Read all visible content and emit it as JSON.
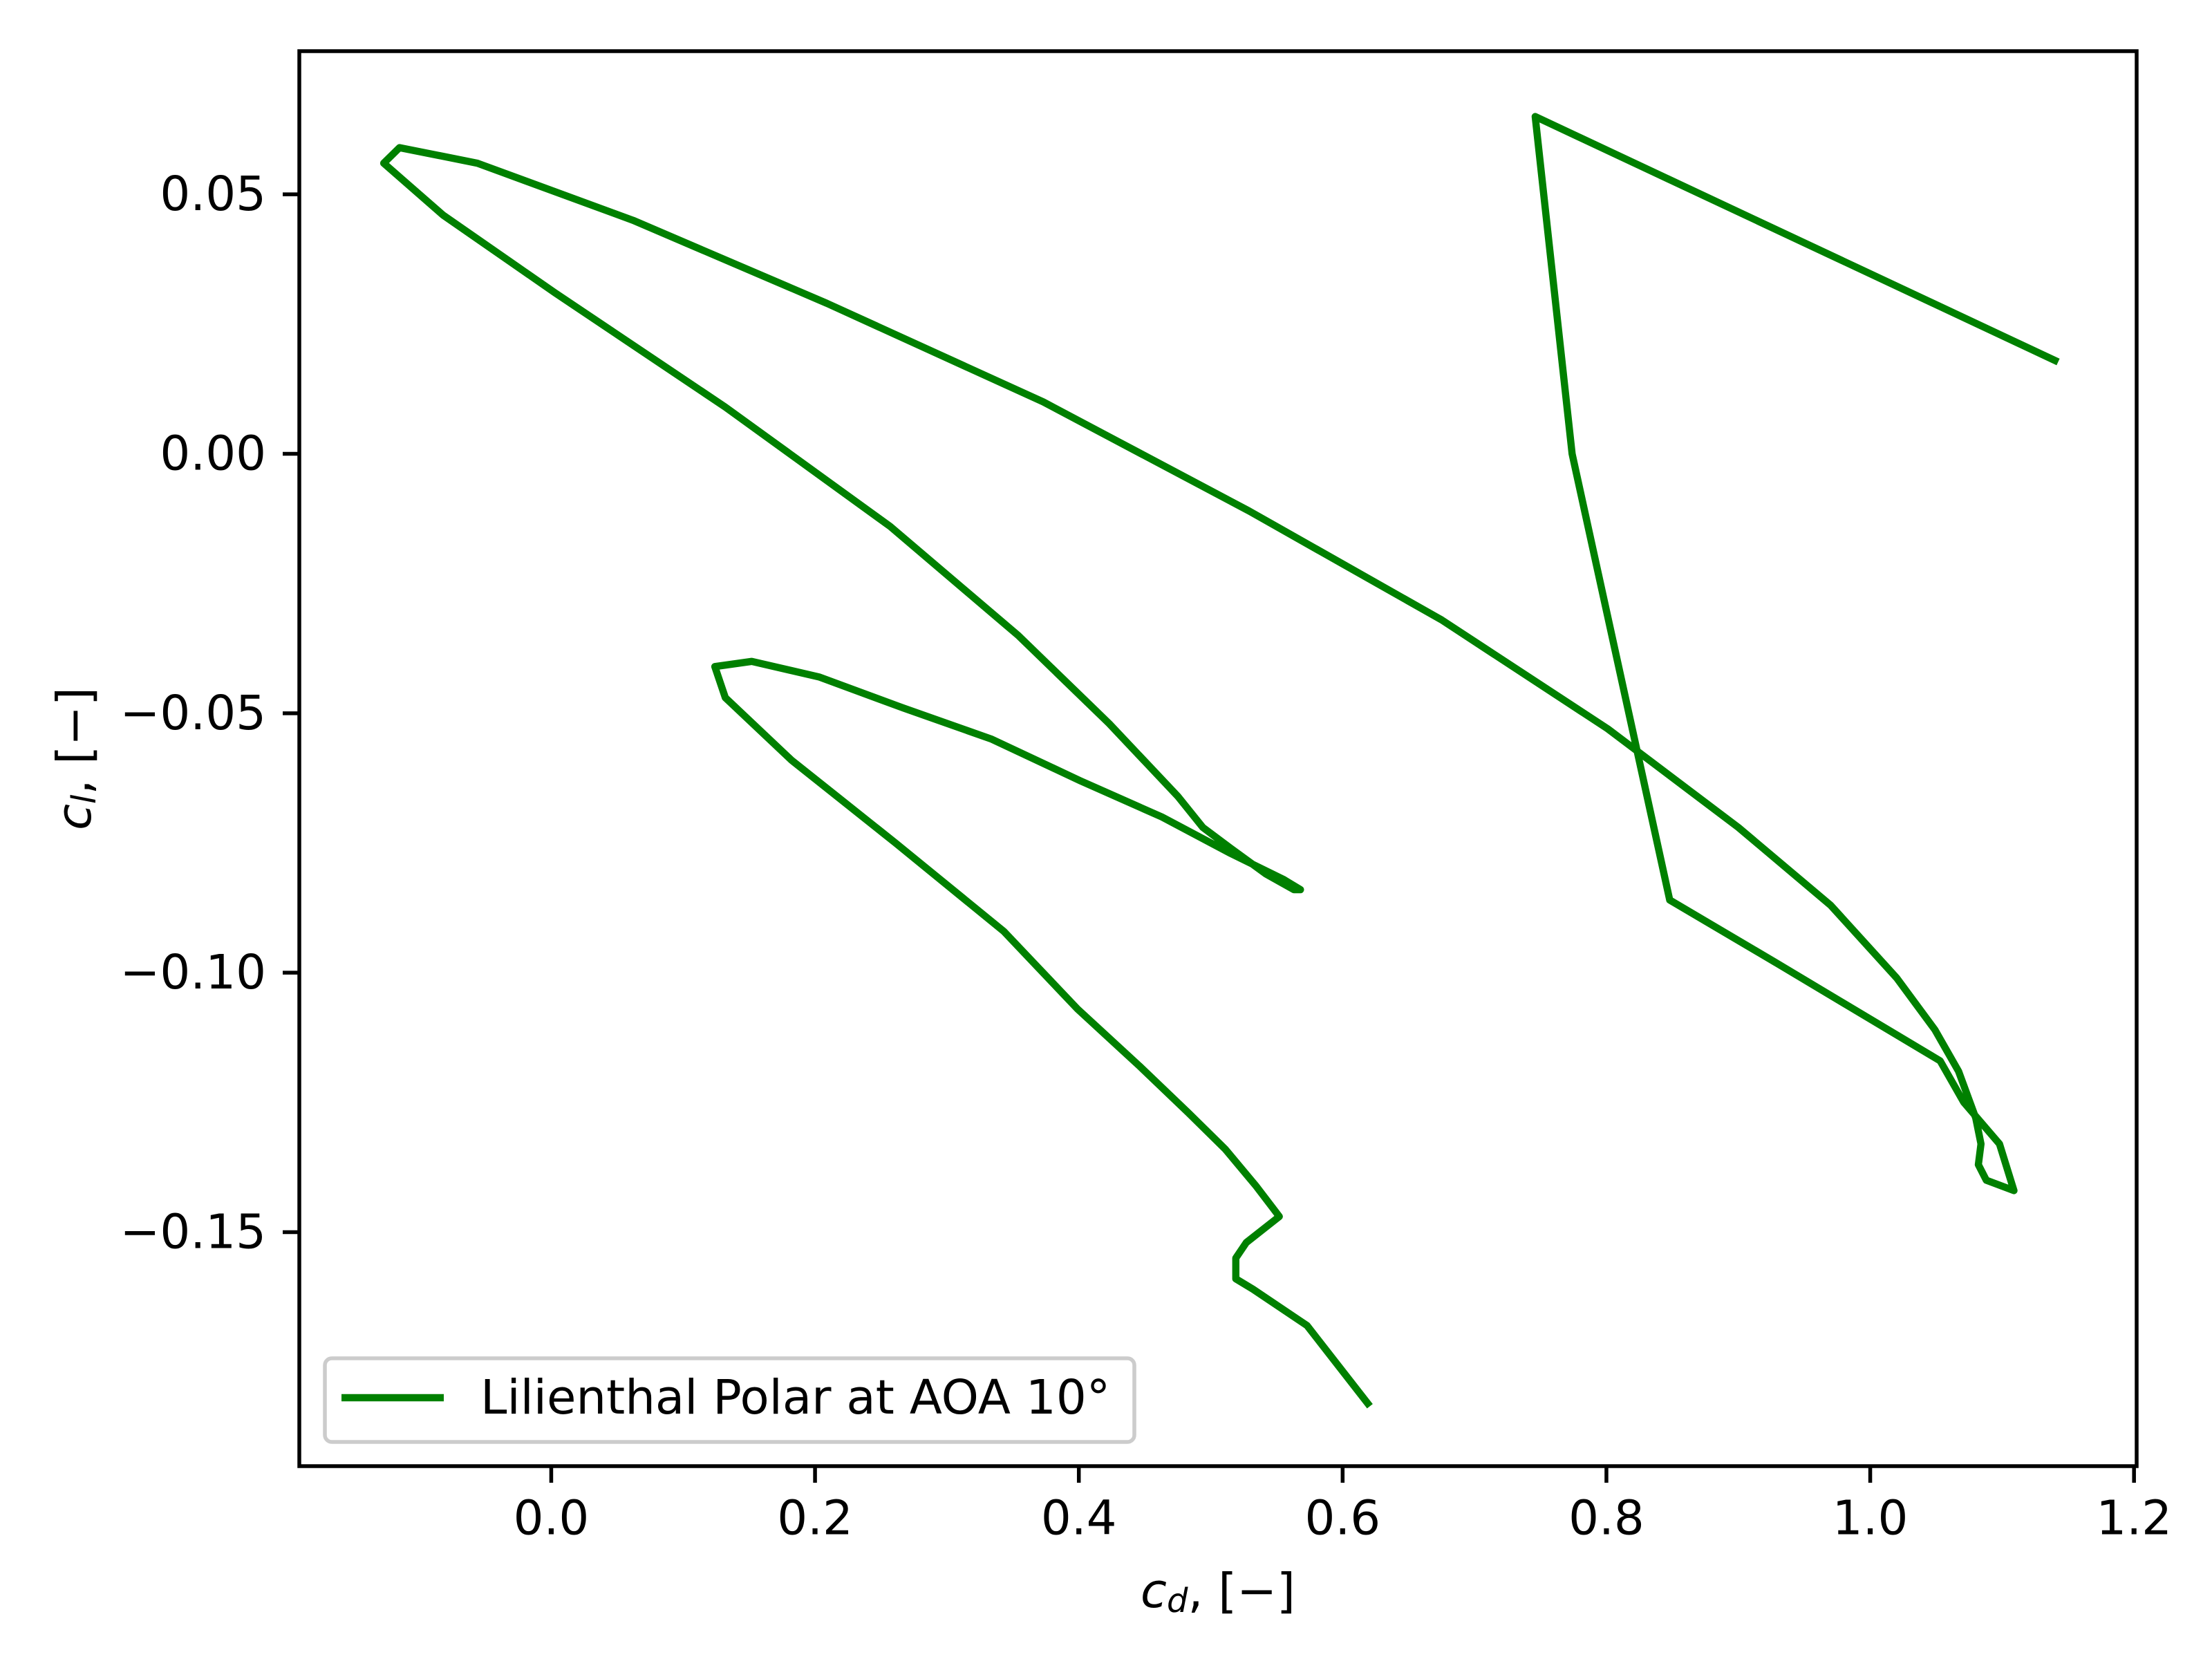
{
  "chart_data": {
    "type": "line",
    "xlabel": {
      "symbol": "c",
      "subscript": "d",
      "unit": ", [−]"
    },
    "ylabel": {
      "symbol": "c",
      "subscript": "l",
      "unit": ", [−]"
    },
    "x": [
      0.619,
      0.573,
      0.532,
      0.519,
      0.519,
      0.527,
      0.552,
      0.546,
      0.534,
      0.511,
      0.483,
      0.446,
      0.399,
      0.343,
      0.261,
      0.182,
      0.132,
      0.124,
      0.152,
      0.203,
      0.267,
      0.334,
      0.401,
      0.463,
      0.515,
      0.555,
      0.568,
      0.563,
      0.542,
      0.515,
      0.494,
      0.475,
      0.423,
      0.354,
      0.257,
      0.132,
      0.003,
      -0.082,
      -0.127,
      -0.115,
      -0.056,
      0.062,
      0.209,
      0.373,
      0.529,
      0.675,
      0.801,
      0.9,
      0.97,
      1.02,
      1.049,
      1.067,
      1.08,
      1.084,
      1.082,
      1.088,
      1.109,
      1.098,
      1.071,
      1.053,
      0.928,
      0.848,
      0.774,
      0.746,
      1.14
    ],
    "series": [
      {
        "name": "Lilienthal Polar at AOA 10°",
        "color": "#008000",
        "values": [
          -0.183,
          -0.168,
          -0.161,
          -0.159,
          -0.155,
          -0.152,
          -0.147,
          -0.145,
          -0.141,
          -0.134,
          -0.127,
          -0.118,
          -0.107,
          -0.092,
          -0.075,
          -0.059,
          -0.047,
          -0.041,
          -0.04,
          -0.043,
          -0.049,
          -0.055,
          -0.063,
          -0.07,
          -0.077,
          -0.082,
          -0.084,
          -0.084,
          -0.081,
          -0.076,
          -0.072,
          -0.066,
          -0.052,
          -0.035,
          -0.014,
          0.009,
          0.031,
          0.046,
          0.056,
          0.059,
          0.056,
          0.045,
          0.029,
          0.01,
          -0.011,
          -0.032,
          -0.053,
          -0.072,
          -0.087,
          -0.101,
          -0.111,
          -0.119,
          -0.128,
          -0.133,
          -0.137,
          -0.14,
          -0.142,
          -0.133,
          -0.125,
          -0.117,
          -0.098,
          -0.086,
          0.0,
          0.065,
          0.018
        ]
      }
    ],
    "xlim": [
      -0.191,
      1.202
    ],
    "ylim": [
      -0.1951,
      0.0776
    ],
    "xticks": [
      {
        "value": 0,
        "label": "0.0"
      },
      0.2,
      0.4,
      0.6,
      0.8,
      {
        "value": 1,
        "label": "1.0"
      },
      1.2
    ],
    "yticks": [
      {
        "value": -0.15,
        "label": "−0.15"
      },
      {
        "value": -0.1,
        "label": "−0.10"
      },
      {
        "value": -0.05,
        "label": "−0.05"
      },
      {
        "value": 0,
        "label": "0.00"
      },
      0.05
    ],
    "legend": "lower left",
    "grid": false
  }
}
